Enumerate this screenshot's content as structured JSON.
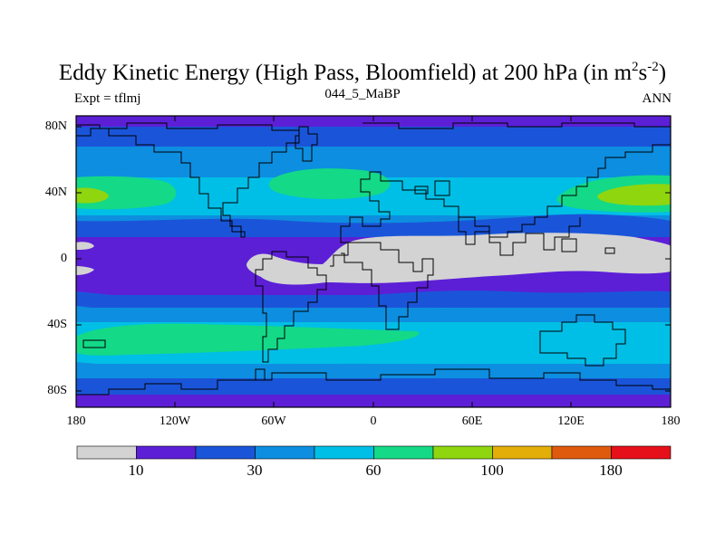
{
  "figure": {
    "title_main": "Eddy Kinetic Energy (High Pass, Bloomfield) at 200 hPa (in m",
    "title_sup1": "2",
    "title_mid": "s",
    "title_sup2": "-2",
    "title_end": ")",
    "subtitle_center": "044_5_MaBP",
    "subtitle_left": "Expt = tflmj",
    "subtitle_right": "ANN"
  },
  "axes": {
    "lat_ticks": [
      "80N",
      "40N",
      "0",
      "40S",
      "80S"
    ],
    "lon_ticks": [
      "180",
      "120W",
      "60W",
      "0",
      "60E",
      "120E",
      "180"
    ]
  },
  "colorbar": {
    "colors": [
      "#d3d3d3",
      "#5c1fd6",
      "#1a55d9",
      "#0d8ee0",
      "#00bfe6",
      "#14d987",
      "#8fd60f",
      "#e3ae08",
      "#e05a0d",
      "#e6101a"
    ],
    "labels": [
      "10",
      "30",
      "60",
      "100",
      "180"
    ]
  },
  "legend_colors": {
    "land": "#d3d3d3",
    "coast": "#000000"
  }
}
